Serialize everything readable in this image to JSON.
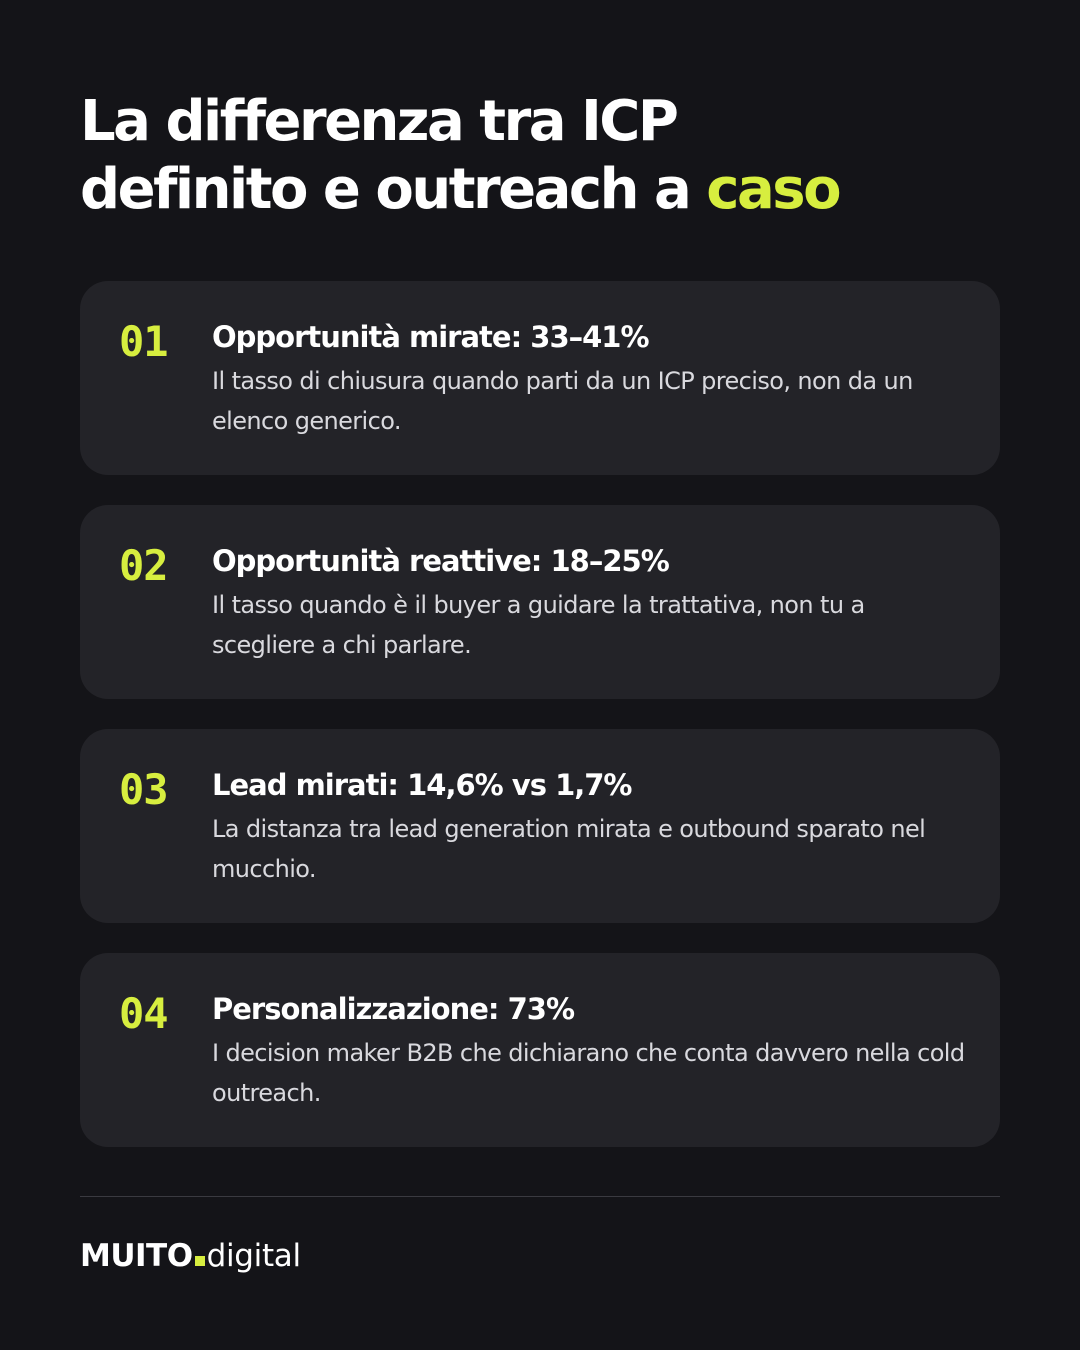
{
  "headline": {
    "line1": "La differenza tra ICP",
    "line2_main": "definito e outreach a ",
    "line2_accent": "caso"
  },
  "colors": {
    "background": "#141418",
    "card": "#232328",
    "accent": "#d7ee3f",
    "text": "#ffffff",
    "muted": "#d9d9de"
  },
  "cards": [
    {
      "number": "01",
      "title": "Opportunità mirate: 33–41%",
      "description": "Il tasso di chiusura quando parti da un ICP preciso, non da un elenco generico."
    },
    {
      "number": "02",
      "title": "Opportunità reattive: 18–25%",
      "description": "Il tasso quando è il buyer a guidare la trattativa, non tu a scegliere a chi parlare."
    },
    {
      "number": "03",
      "title": "Lead mirati: 14,6% vs 1,7%",
      "description": "La distanza tra lead generation mirata e outbound sparato nel mucchio."
    },
    {
      "number": "04",
      "title": "Personalizzazione: 73%",
      "description": "I decision maker B2B che dichiarano che conta davvero nella cold outreach."
    }
  ],
  "footer": {
    "logo_brand": "MUITO",
    "logo_suffix": "digital"
  }
}
